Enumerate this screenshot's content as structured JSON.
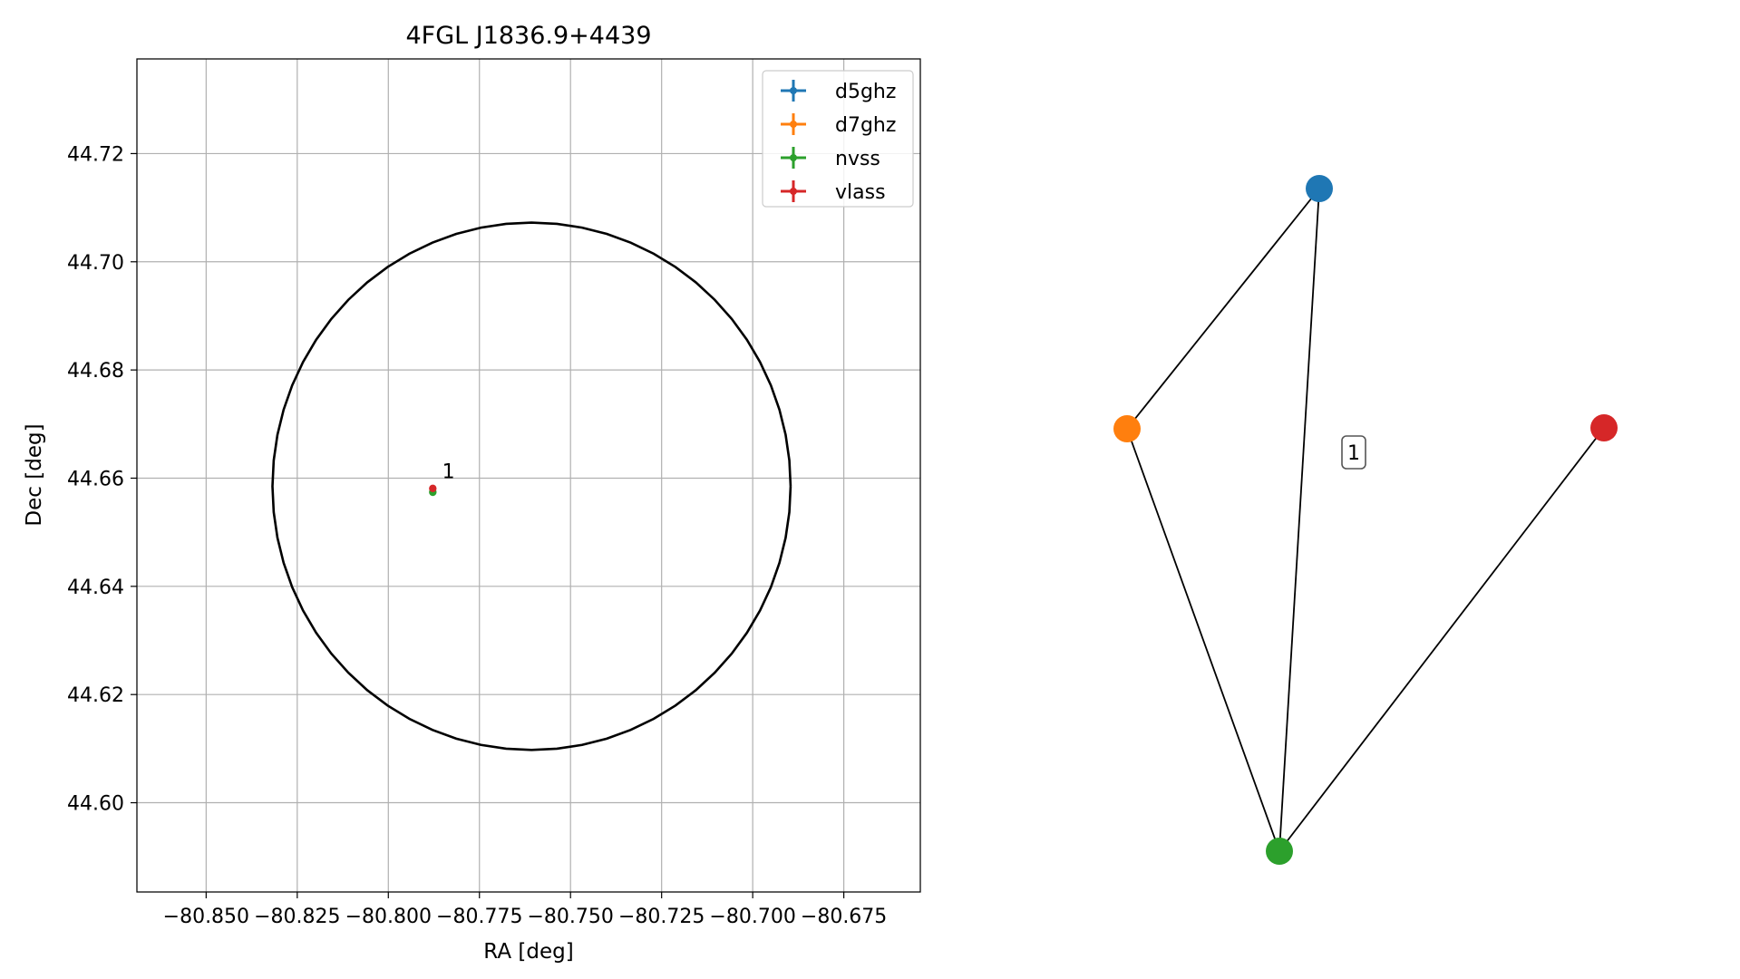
{
  "chart_data": [
    {
      "type": "scatter",
      "title": "4FGL J1836.9+4439",
      "xlabel": "RA [deg]",
      "ylabel": "Dec [deg]",
      "xlim": [
        -80.869,
        -80.654
      ],
      "ylim": [
        44.5835,
        44.7375
      ],
      "grid": true,
      "legend_position": "top-right",
      "xticks": [
        -80.85,
        -80.825,
        -80.8,
        -80.775,
        -80.75,
        -80.725,
        -80.7,
        -80.675
      ],
      "xtick_labels": [
        "−80.850",
        "−80.825",
        "−80.800",
        "−80.775",
        "−80.750",
        "−80.725",
        "−80.700",
        "−80.675"
      ],
      "yticks": [
        44.6,
        44.62,
        44.64,
        44.66,
        44.68,
        44.7,
        44.72
      ],
      "ytick_labels": [
        "44.60",
        "44.62",
        "44.64",
        "44.66",
        "44.68",
        "44.70",
        "44.72"
      ],
      "series": [
        {
          "name": "d5ghz",
          "color": "#1f77b4",
          "points": []
        },
        {
          "name": "d7ghz",
          "color": "#ff7f0e",
          "points": []
        },
        {
          "name": "nvss",
          "color": "#2ca02c",
          "points": [
            [
              -80.7878,
              44.6574
            ]
          ]
        },
        {
          "name": "vlass",
          "color": "#d62728",
          "points": [
            [
              -80.7878,
              44.6581
            ]
          ]
        }
      ],
      "annotations": [
        {
          "text": "1",
          "x": -80.7835,
          "y": 44.66
        }
      ],
      "ellipse": {
        "center": [
          -80.7607,
          44.6585
        ],
        "ra_semi_axis": 0.0711,
        "dec_semi_axis": 0.04875,
        "color": "#000000"
      }
    },
    {
      "type": "network",
      "nodes": [
        {
          "id": "d5ghz",
          "color": "#1f77b4"
        },
        {
          "id": "d7ghz",
          "color": "#ff7f0e"
        },
        {
          "id": "nvss",
          "color": "#2ca02c"
        },
        {
          "id": "vlass",
          "color": "#d62728"
        }
      ],
      "edges": [
        [
          "d5ghz",
          "d7ghz"
        ],
        [
          "d5ghz",
          "nvss"
        ],
        [
          "d7ghz",
          "nvss"
        ],
        [
          "nvss",
          "vlass"
        ]
      ],
      "labels": [
        {
          "text": "1"
        }
      ]
    }
  ]
}
